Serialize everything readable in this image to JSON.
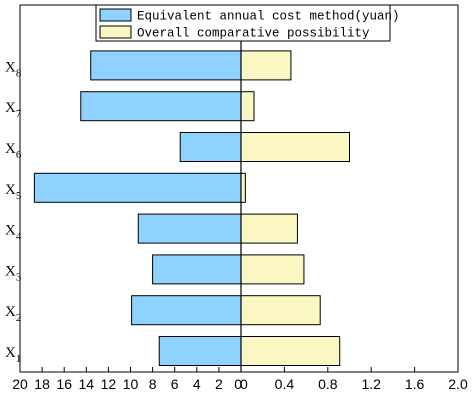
{
  "chart_data": {
    "type": "bar",
    "orientation": "horizontal-diverging",
    "title": "",
    "categories": [
      "X1",
      "X2",
      "X3",
      "X4",
      "X5",
      "X6",
      "X7",
      "X8"
    ],
    "category_labels": [
      {
        "base": "X",
        "sub": "1"
      },
      {
        "base": "X",
        "sub": "2"
      },
      {
        "base": "X",
        "sub": "3"
      },
      {
        "base": "X",
        "sub": "4"
      },
      {
        "base": "X",
        "sub": "5"
      },
      {
        "base": "X",
        "sub": "6"
      },
      {
        "base": "X",
        "sub": "7"
      },
      {
        "base": "X",
        "sub": "8"
      }
    ],
    "series": [
      {
        "name": "Equivalent annual cost method(yuan)",
        "side": "left",
        "color": "#8fd1ff",
        "values": [
          7.4,
          9.9,
          8.0,
          9.3,
          18.7,
          5.5,
          14.5,
          13.6
        ]
      },
      {
        "name": "Overall comparative possibility",
        "side": "right",
        "color": "#faf7c2",
        "values": [
          0.91,
          0.73,
          0.58,
          0.52,
          0.04,
          1.0,
          0.12,
          0.46
        ]
      }
    ],
    "left_axis": {
      "range": [
        0,
        20
      ],
      "reversed": true,
      "ticks": [
        "20",
        "18",
        "16",
        "14",
        "12",
        "10",
        "8",
        "6",
        "4",
        "2",
        "0"
      ]
    },
    "right_axis": {
      "range": [
        0,
        2.0
      ],
      "ticks": [
        "0",
        "0.4",
        "0.8",
        "1.2",
        "1.6",
        "2.0"
      ]
    },
    "legend_position": "top-center",
    "grid": false
  }
}
